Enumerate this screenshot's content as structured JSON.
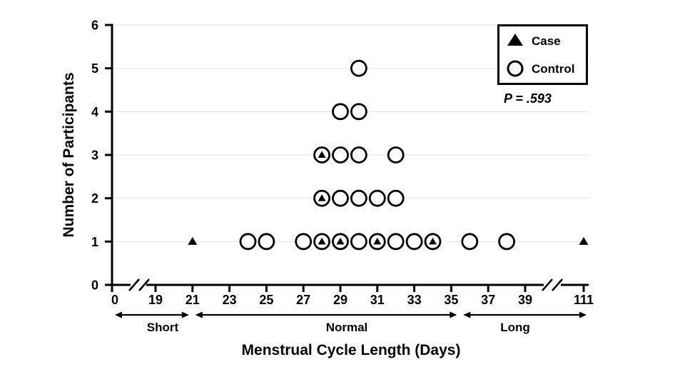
{
  "chart_data": {
    "type": "scatter",
    "title": "",
    "xlabel": "Menstrual Cycle Length (Days)",
    "ylabel": "Number of Participants",
    "x_ticks": [
      0,
      19,
      21,
      23,
      25,
      27,
      29,
      31,
      33,
      35,
      37,
      39,
      111
    ],
    "y_ticks": [
      0,
      1,
      2,
      3,
      4,
      5,
      6
    ],
    "ylim": [
      0,
      6
    ],
    "x_axis_breaks": [
      [
        0,
        19
      ],
      [
        39,
        111
      ]
    ],
    "grid": "horizontal-light",
    "legend": {
      "position": "top-right",
      "entries": [
        {
          "label": "Case",
          "marker": "filled-triangle"
        },
        {
          "label": "Control",
          "marker": "open-circle"
        }
      ]
    },
    "annotation": {
      "text": "P = .593"
    },
    "regions": [
      {
        "label": "Short",
        "from_day": 0,
        "to_day": 21
      },
      {
        "label": "Normal",
        "from_day": 21,
        "to_day": 35.5
      },
      {
        "label": "Long",
        "from_day": 35.5,
        "to_day": 111
      }
    ],
    "series": [
      {
        "name": "Case",
        "marker": "filled-triangle",
        "points": [
          [
            21,
            1
          ],
          [
            28,
            1
          ],
          [
            29,
            1
          ],
          [
            31,
            1
          ],
          [
            34,
            1
          ],
          [
            111,
            1
          ],
          [
            28,
            2
          ],
          [
            28,
            3
          ]
        ]
      },
      {
        "name": "Control",
        "marker": "open-circle",
        "points": [
          [
            24,
            1
          ],
          [
            25,
            1
          ],
          [
            27,
            1
          ],
          [
            28,
            1
          ],
          [
            29,
            1
          ],
          [
            30,
            1
          ],
          [
            31,
            1
          ],
          [
            32,
            1
          ],
          [
            33,
            1
          ],
          [
            34,
            1
          ],
          [
            36,
            1
          ],
          [
            38,
            1
          ],
          [
            28,
            2
          ],
          [
            29,
            2
          ],
          [
            30,
            2
          ],
          [
            31,
            2
          ],
          [
            32,
            2
          ],
          [
            28,
            3
          ],
          [
            29,
            3
          ],
          [
            30,
            3
          ],
          [
            32,
            3
          ],
          [
            29,
            4
          ],
          [
            30,
            4
          ],
          [
            30,
            5
          ]
        ]
      }
    ],
    "colors": {
      "marker": "#000000",
      "gridline": "#e8e8e8",
      "background": "#ffffff"
    }
  }
}
